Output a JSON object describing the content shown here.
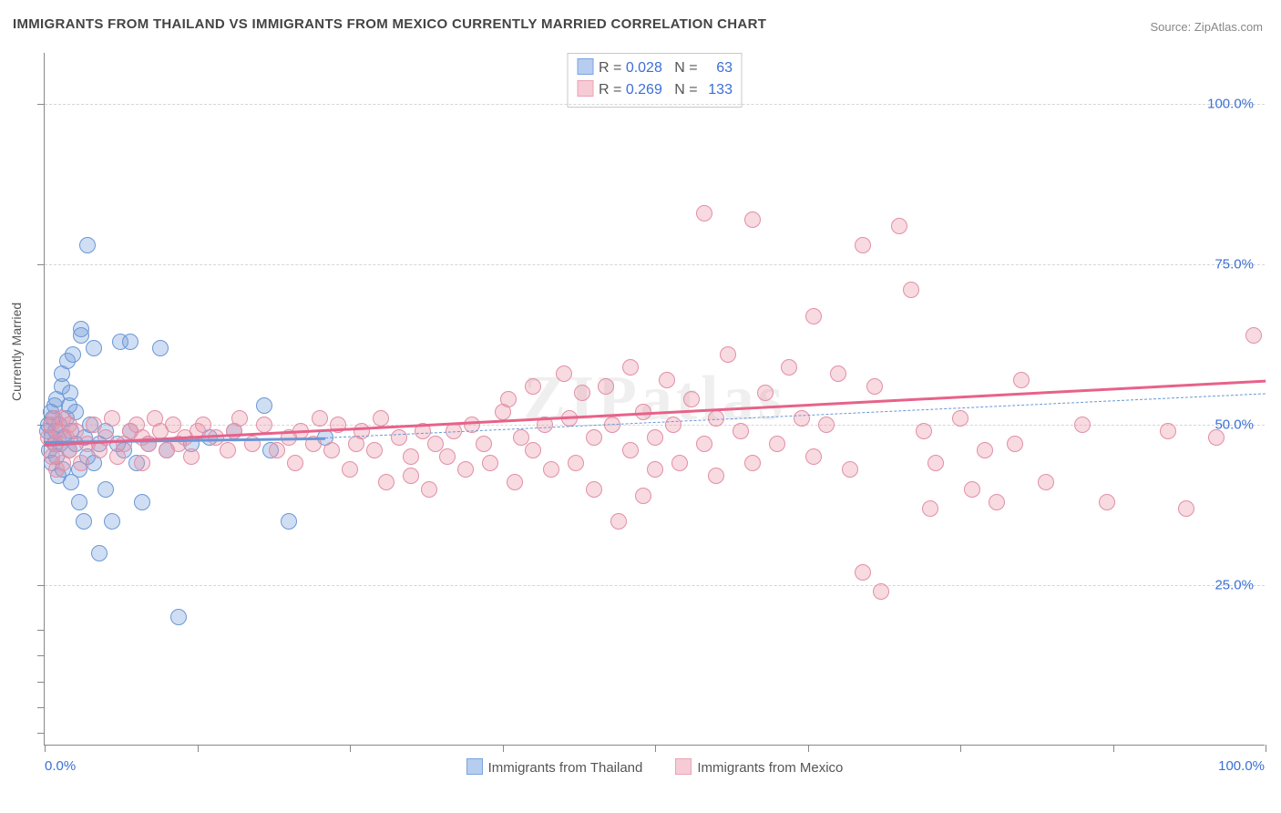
{
  "title": "IMMIGRANTS FROM THAILAND VS IMMIGRANTS FROM MEXICO CURRENTLY MARRIED CORRELATION CHART",
  "source": "Source: ZipAtlas.com",
  "watermark": "ZIPatlas",
  "chart": {
    "type": "scatter",
    "ylabel": "Currently Married",
    "xlim": [
      0,
      100
    ],
    "ylim": [
      0,
      108
    ],
    "xtick_positions": [
      0,
      12.5,
      25,
      37.5,
      50,
      62.5,
      75,
      87.5,
      100
    ],
    "xlabels": {
      "min": "0.0%",
      "max": "100.0%"
    },
    "y_gridlines": [
      {
        "value": 25,
        "label": "25.0%"
      },
      {
        "value": 50,
        "label": "50.0%"
      },
      {
        "value": 75,
        "label": "75.0%"
      },
      {
        "value": 100,
        "label": "100.0%"
      }
    ],
    "ytick_positions": [
      2,
      6,
      10,
      14,
      18,
      25,
      50,
      75,
      100
    ],
    "background_color": "#ffffff",
    "marker_radius": 9,
    "marker_border_width": 1.5,
    "series": [
      {
        "name": "Immigrants from Thailand",
        "fill_color": "rgba(120,160,220,0.35)",
        "stroke_color": "#6a97d6",
        "swatch_fill": "#b7cdef",
        "swatch_border": "#7aa3df",
        "stats": {
          "R_label": "R =",
          "R": "0.028",
          "N_label": "N =",
          "N": "63"
        },
        "trend": {
          "color": "#6a97d6",
          "width": 3,
          "dash": "none",
          "x1": 0,
          "y1": 47.5,
          "x2": 23,
          "y2": 48.1
        },
        "dashline": {
          "color": "#6a97d6",
          "width": 1,
          "dash": "4 4",
          "x1": 23,
          "y1": 48.1,
          "x2": 100,
          "y2": 55
        },
        "points": [
          [
            0.2,
            49
          ],
          [
            0.3,
            50
          ],
          [
            0.4,
            46
          ],
          [
            0.5,
            52
          ],
          [
            0.6,
            48
          ],
          [
            0.6,
            44
          ],
          [
            0.7,
            51
          ],
          [
            0.8,
            47
          ],
          [
            0.8,
            53
          ],
          [
            0.9,
            49
          ],
          [
            1.0,
            45
          ],
          [
            1.0,
            54
          ],
          [
            1.1,
            42
          ],
          [
            1.2,
            50
          ],
          [
            1.3,
            47
          ],
          [
            1.4,
            56
          ],
          [
            1.4,
            58
          ],
          [
            1.5,
            43
          ],
          [
            1.6,
            48
          ],
          [
            1.8,
            51
          ],
          [
            1.9,
            60
          ],
          [
            2.0,
            46
          ],
          [
            2.0,
            53
          ],
          [
            2.1,
            55
          ],
          [
            2.2,
            49
          ],
          [
            2.2,
            41
          ],
          [
            2.3,
            61
          ],
          [
            2.5,
            47
          ],
          [
            2.5,
            52
          ],
          [
            2.8,
            43
          ],
          [
            2.8,
            38
          ],
          [
            3.0,
            65
          ],
          [
            3.0,
            64
          ],
          [
            3.2,
            35
          ],
          [
            3.3,
            48
          ],
          [
            3.5,
            45
          ],
          [
            3.5,
            78
          ],
          [
            3.7,
            50
          ],
          [
            4.0,
            62
          ],
          [
            4.0,
            44
          ],
          [
            4.5,
            47
          ],
          [
            4.5,
            30
          ],
          [
            5.0,
            49
          ],
          [
            5.0,
            40
          ],
          [
            5.5,
            35
          ],
          [
            6.0,
            47
          ],
          [
            6.2,
            63
          ],
          [
            6.5,
            46
          ],
          [
            7.0,
            63
          ],
          [
            7.0,
            49
          ],
          [
            7.5,
            44
          ],
          [
            8.0,
            38
          ],
          [
            8.5,
            47
          ],
          [
            9.5,
            62
          ],
          [
            10.0,
            46
          ],
          [
            11.0,
            20
          ],
          [
            12.0,
            47
          ],
          [
            13.5,
            48
          ],
          [
            15.5,
            49
          ],
          [
            18.0,
            53
          ],
          [
            18.5,
            46
          ],
          [
            20.0,
            35
          ],
          [
            23.0,
            48
          ]
        ]
      },
      {
        "name": "Immigrants from Mexico",
        "fill_color": "rgba(236,150,170,0.35)",
        "stroke_color": "#e28fa5",
        "swatch_fill": "#f6cbd5",
        "swatch_border": "#e9a3b4",
        "stats": {
          "R_label": "R =",
          "R": "0.269",
          "N_label": "N =",
          "N": "133"
        },
        "trend": {
          "color": "#e7628a",
          "width": 3,
          "dash": "none",
          "x1": 0,
          "y1": 47,
          "x2": 100,
          "y2": 57
        },
        "dashline": null,
        "points": [
          [
            0.3,
            48
          ],
          [
            0.5,
            50
          ],
          [
            0.6,
            45
          ],
          [
            0.8,
            51
          ],
          [
            0.9,
            47
          ],
          [
            1.0,
            43
          ],
          [
            1.2,
            49
          ],
          [
            1.5,
            44
          ],
          [
            1.5,
            51
          ],
          [
            1.8,
            48
          ],
          [
            2.0,
            46
          ],
          [
            2.0,
            50
          ],
          [
            2.5,
            49
          ],
          [
            3.0,
            44
          ],
          [
            3.5,
            47
          ],
          [
            4.0,
            50
          ],
          [
            4.5,
            46
          ],
          [
            5.0,
            48
          ],
          [
            5.5,
            51
          ],
          [
            6.0,
            45
          ],
          [
            6.5,
            47
          ],
          [
            7.0,
            49
          ],
          [
            7.5,
            50
          ],
          [
            8.0,
            48
          ],
          [
            8.0,
            44
          ],
          [
            8.5,
            47
          ],
          [
            9.0,
            51
          ],
          [
            9.5,
            49
          ],
          [
            10.0,
            46
          ],
          [
            10.5,
            50
          ],
          [
            11.0,
            47
          ],
          [
            11.5,
            48
          ],
          [
            12.0,
            45
          ],
          [
            12.5,
            49
          ],
          [
            13.0,
            50
          ],
          [
            14.0,
            48
          ],
          [
            15.0,
            46
          ],
          [
            15.5,
            49
          ],
          [
            16.0,
            51
          ],
          [
            17.0,
            47
          ],
          [
            18.0,
            50
          ],
          [
            19.0,
            46
          ],
          [
            20.0,
            48
          ],
          [
            20.5,
            44
          ],
          [
            21.0,
            49
          ],
          [
            22.0,
            47
          ],
          [
            22.5,
            51
          ],
          [
            23.5,
            46
          ],
          [
            24.0,
            50
          ],
          [
            25.0,
            43
          ],
          [
            25.5,
            47
          ],
          [
            26.0,
            49
          ],
          [
            27.0,
            46
          ],
          [
            27.5,
            51
          ],
          [
            28.0,
            41
          ],
          [
            29.0,
            48
          ],
          [
            30.0,
            45
          ],
          [
            30.0,
            42
          ],
          [
            31.0,
            49
          ],
          [
            31.5,
            40
          ],
          [
            32.0,
            47
          ],
          [
            33.0,
            45
          ],
          [
            33.5,
            49
          ],
          [
            34.5,
            43
          ],
          [
            35.0,
            50
          ],
          [
            36.0,
            47
          ],
          [
            36.5,
            44
          ],
          [
            37.5,
            52
          ],
          [
            38.0,
            54
          ],
          [
            38.5,
            41
          ],
          [
            39.0,
            48
          ],
          [
            40.0,
            56
          ],
          [
            40.0,
            46
          ],
          [
            41.0,
            50
          ],
          [
            41.5,
            43
          ],
          [
            42.5,
            58
          ],
          [
            43.0,
            51
          ],
          [
            43.5,
            44
          ],
          [
            44.0,
            55
          ],
          [
            45.0,
            48
          ],
          [
            45.0,
            40
          ],
          [
            46.0,
            56
          ],
          [
            46.5,
            50
          ],
          [
            47.0,
            35
          ],
          [
            48.0,
            59
          ],
          [
            48.0,
            46
          ],
          [
            49.0,
            52
          ],
          [
            49.0,
            39
          ],
          [
            50.0,
            48
          ],
          [
            50.0,
            43
          ],
          [
            51.0,
            57
          ],
          [
            51.5,
            50
          ],
          [
            52.0,
            44
          ],
          [
            53.0,
            54
          ],
          [
            54.0,
            83
          ],
          [
            54.0,
            47
          ],
          [
            55.0,
            51
          ],
          [
            55.0,
            42
          ],
          [
            56.0,
            61
          ],
          [
            57.0,
            49
          ],
          [
            58.0,
            82
          ],
          [
            58.0,
            44
          ],
          [
            59.0,
            55
          ],
          [
            60.0,
            47
          ],
          [
            61.0,
            59
          ],
          [
            62.0,
            51
          ],
          [
            63.0,
            45
          ],
          [
            63.0,
            67
          ],
          [
            64.0,
            50
          ],
          [
            65.0,
            58
          ],
          [
            66.0,
            43
          ],
          [
            67.0,
            78
          ],
          [
            67.0,
            27
          ],
          [
            68.0,
            56
          ],
          [
            68.5,
            24
          ],
          [
            70.0,
            81
          ],
          [
            71.0,
            71
          ],
          [
            72.0,
            49
          ],
          [
            72.5,
            37
          ],
          [
            73.0,
            44
          ],
          [
            75.0,
            51
          ],
          [
            76.0,
            40
          ],
          [
            77.0,
            46
          ],
          [
            78.0,
            38
          ],
          [
            79.5,
            47
          ],
          [
            80.0,
            57
          ],
          [
            82.0,
            41
          ],
          [
            85.0,
            50
          ],
          [
            87.0,
            38
          ],
          [
            92.0,
            49
          ],
          [
            93.5,
            37
          ],
          [
            96.0,
            48
          ],
          [
            99.0,
            64
          ]
        ]
      }
    ]
  }
}
